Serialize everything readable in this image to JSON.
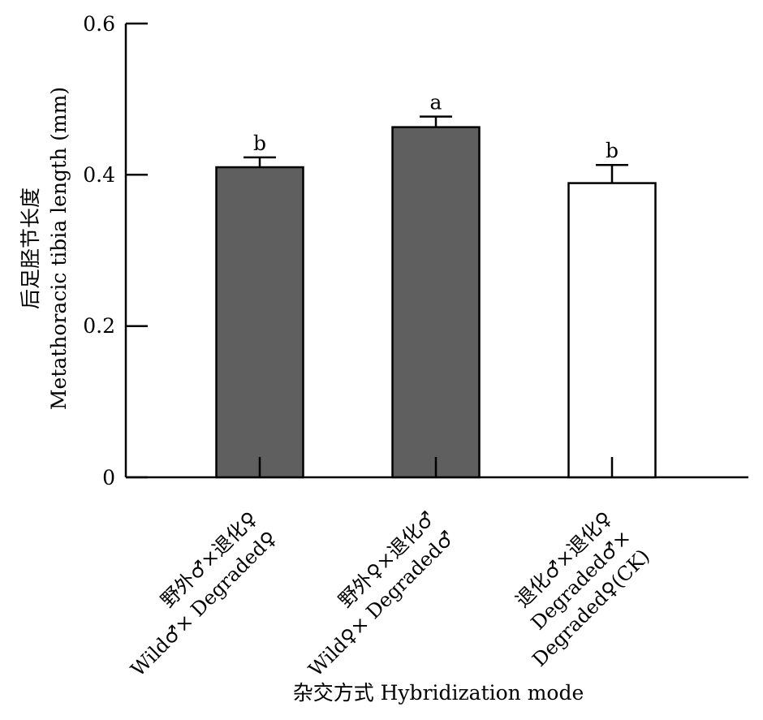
{
  "chart_data": {
    "type": "bar",
    "xlabel": "杂交方式 Hybridization mode",
    "ylabel_cn": "后足胫节长度",
    "ylabel_en": "Metathoracic tibia length (mm)",
    "ylim": [
      0,
      0.6
    ],
    "yticks": [
      "0",
      "0.2",
      "0.4",
      "0.6"
    ],
    "grid": false,
    "categories": [
      {
        "cn": "野外♂×退化♀",
        "en": "Wild♂× Degraded♀"
      },
      {
        "cn": "野外♀×退化♂",
        "en": "Wild♀× Degraded♂"
      },
      {
        "cn": "退化♂×退化♀",
        "en_line1": "Degraded♂×",
        "en_line2": "Degraded♀(CK)"
      }
    ],
    "values": [
      0.41,
      0.463,
      0.389
    ],
    "errors": [
      0.013,
      0.014,
      0.024
    ],
    "letters": [
      "b",
      "a",
      "b"
    ],
    "colors": [
      "#5f5f5f",
      "#5f5f5f",
      "#ffffff"
    ]
  }
}
